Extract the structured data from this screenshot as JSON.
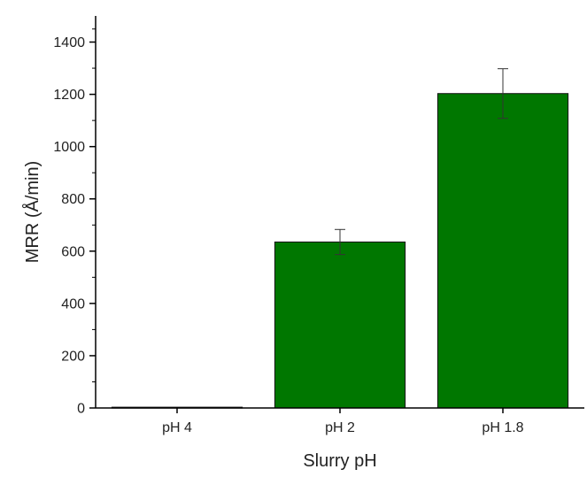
{
  "chart_data": {
    "type": "bar",
    "title": "",
    "xlabel": "Slurry pH",
    "ylabel": "MRR (Å/min)",
    "categories": [
      "pH 4",
      "pH 2",
      "pH 1.8"
    ],
    "values": [
      3,
      635,
      1203
    ],
    "errors": [
      0,
      48,
      95
    ],
    "ylim": [
      0,
      1500
    ],
    "yticks": [
      0,
      200,
      400,
      600,
      800,
      1000,
      1200,
      1400
    ],
    "ytick_labels": [
      "0",
      "200",
      "400",
      "600",
      "800",
      "1000",
      "1200",
      "1400"
    ],
    "grid": false,
    "legend": "none",
    "bar_color": "#007700",
    "bar_edge_color": "#111111",
    "error_bar_color": "#333333"
  }
}
